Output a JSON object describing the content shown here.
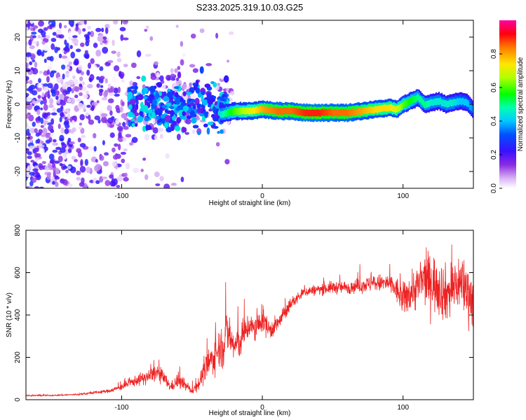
{
  "title": "S233.2025.319.10.03.G25",
  "colors": {
    "snr_line": "#ee2222",
    "axis": "#000000",
    "background": "#ffffff"
  },
  "chart_data": [
    {
      "type": "heatmap",
      "name": "spectrogram",
      "xlabel": "Height of straight line (km)",
      "ylabel": "Frequency (Hz)",
      "xlim": [
        -168,
        150
      ],
      "ylim": [
        -25,
        25
      ],
      "xticks": [
        -100,
        0,
        100
      ],
      "yticks": [
        -20,
        -10,
        0,
        10,
        20
      ],
      "colorbar": {
        "label": "Normalized spectral amplitude",
        "range": [
          0,
          1
        ],
        "ticks": [
          0.0,
          0.2,
          0.4,
          0.6,
          0.8
        ],
        "colormap": "rainbow (purple-blue-cyan-green-yellow-red-magenta)"
      },
      "ridge": {
        "description": "dominant frequency ridge vs height",
        "height_km": [
          -30,
          -20,
          -10,
          0,
          10,
          20,
          30,
          40,
          50,
          60,
          70,
          80,
          90,
          95,
          100,
          105,
          110,
          115,
          120,
          125,
          130,
          135,
          140,
          145,
          150
        ],
        "frequency_hz": [
          -3,
          -2,
          -2,
          -1.5,
          -2,
          -2,
          -2.5,
          -2.5,
          -2.5,
          -2.5,
          -2,
          -1.5,
          -1,
          -1.5,
          0,
          1,
          2,
          0,
          0.5,
          1,
          0,
          0.5,
          1,
          0.5,
          -2
        ],
        "amplitude": [
          0.45,
          0.6,
          0.7,
          0.8,
          0.85,
          0.85,
          0.9,
          0.9,
          0.85,
          0.85,
          0.8,
          0.75,
          0.75,
          0.7,
          0.6,
          0.55,
          0.5,
          0.5,
          0.45,
          0.45,
          0.45,
          0.45,
          0.4,
          0.4,
          0.35
        ]
      },
      "noise_region": {
        "description": "scattered low-amplitude noise blobs",
        "height_km": [
          -168,
          -20
        ],
        "frequency_hz": [
          -25,
          25
        ],
        "amplitude_range": [
          0.0,
          0.3
        ]
      }
    },
    {
      "type": "line",
      "name": "snr",
      "xlabel": "Height of straight line (km)",
      "ylabel": "SNR (10 * v/v)",
      "xlim": [
        -168,
        150
      ],
      "ylim": [
        0,
        800
      ],
      "xticks": [
        -100,
        0,
        100
      ],
      "yticks": [
        0,
        200,
        400,
        600,
        800
      ],
      "series": [
        {
          "name": "SNR",
          "x": [
            -168,
            -150,
            -130,
            -110,
            -100,
            -90,
            -80,
            -75,
            -70,
            -65,
            -60,
            -55,
            -50,
            -45,
            -40,
            -35,
            -30,
            -27,
            -25,
            -20,
            -15,
            -10,
            -5,
            0,
            5,
            10,
            15,
            20,
            25,
            30,
            40,
            50,
            60,
            70,
            80,
            90,
            95,
            100,
            105,
            110,
            115,
            120,
            125,
            130,
            135,
            140,
            145,
            150
          ],
          "y": [
            20,
            20,
            25,
            40,
            60,
            90,
            110,
            130,
            100,
            60,
            90,
            70,
            40,
            80,
            150,
            200,
            250,
            280,
            320,
            250,
            280,
            350,
            330,
            380,
            330,
            350,
            400,
            450,
            480,
            510,
            520,
            530,
            530,
            540,
            550,
            550,
            520,
            470,
            510,
            530,
            570,
            560,
            540,
            500,
            520,
            560,
            520,
            470
          ],
          "noise_envelope": [
            3,
            3,
            4,
            8,
            15,
            25,
            35,
            40,
            35,
            20,
            40,
            25,
            15,
            35,
            60,
            80,
            90,
            140,
            100,
            80,
            80,
            60,
            60,
            60,
            50,
            40,
            35,
            30,
            25,
            25,
            25,
            30,
            30,
            35,
            40,
            45,
            60,
            80,
            90,
            110,
            120,
            130,
            140,
            130,
            140,
            130,
            140,
            130
          ]
        }
      ]
    }
  ]
}
